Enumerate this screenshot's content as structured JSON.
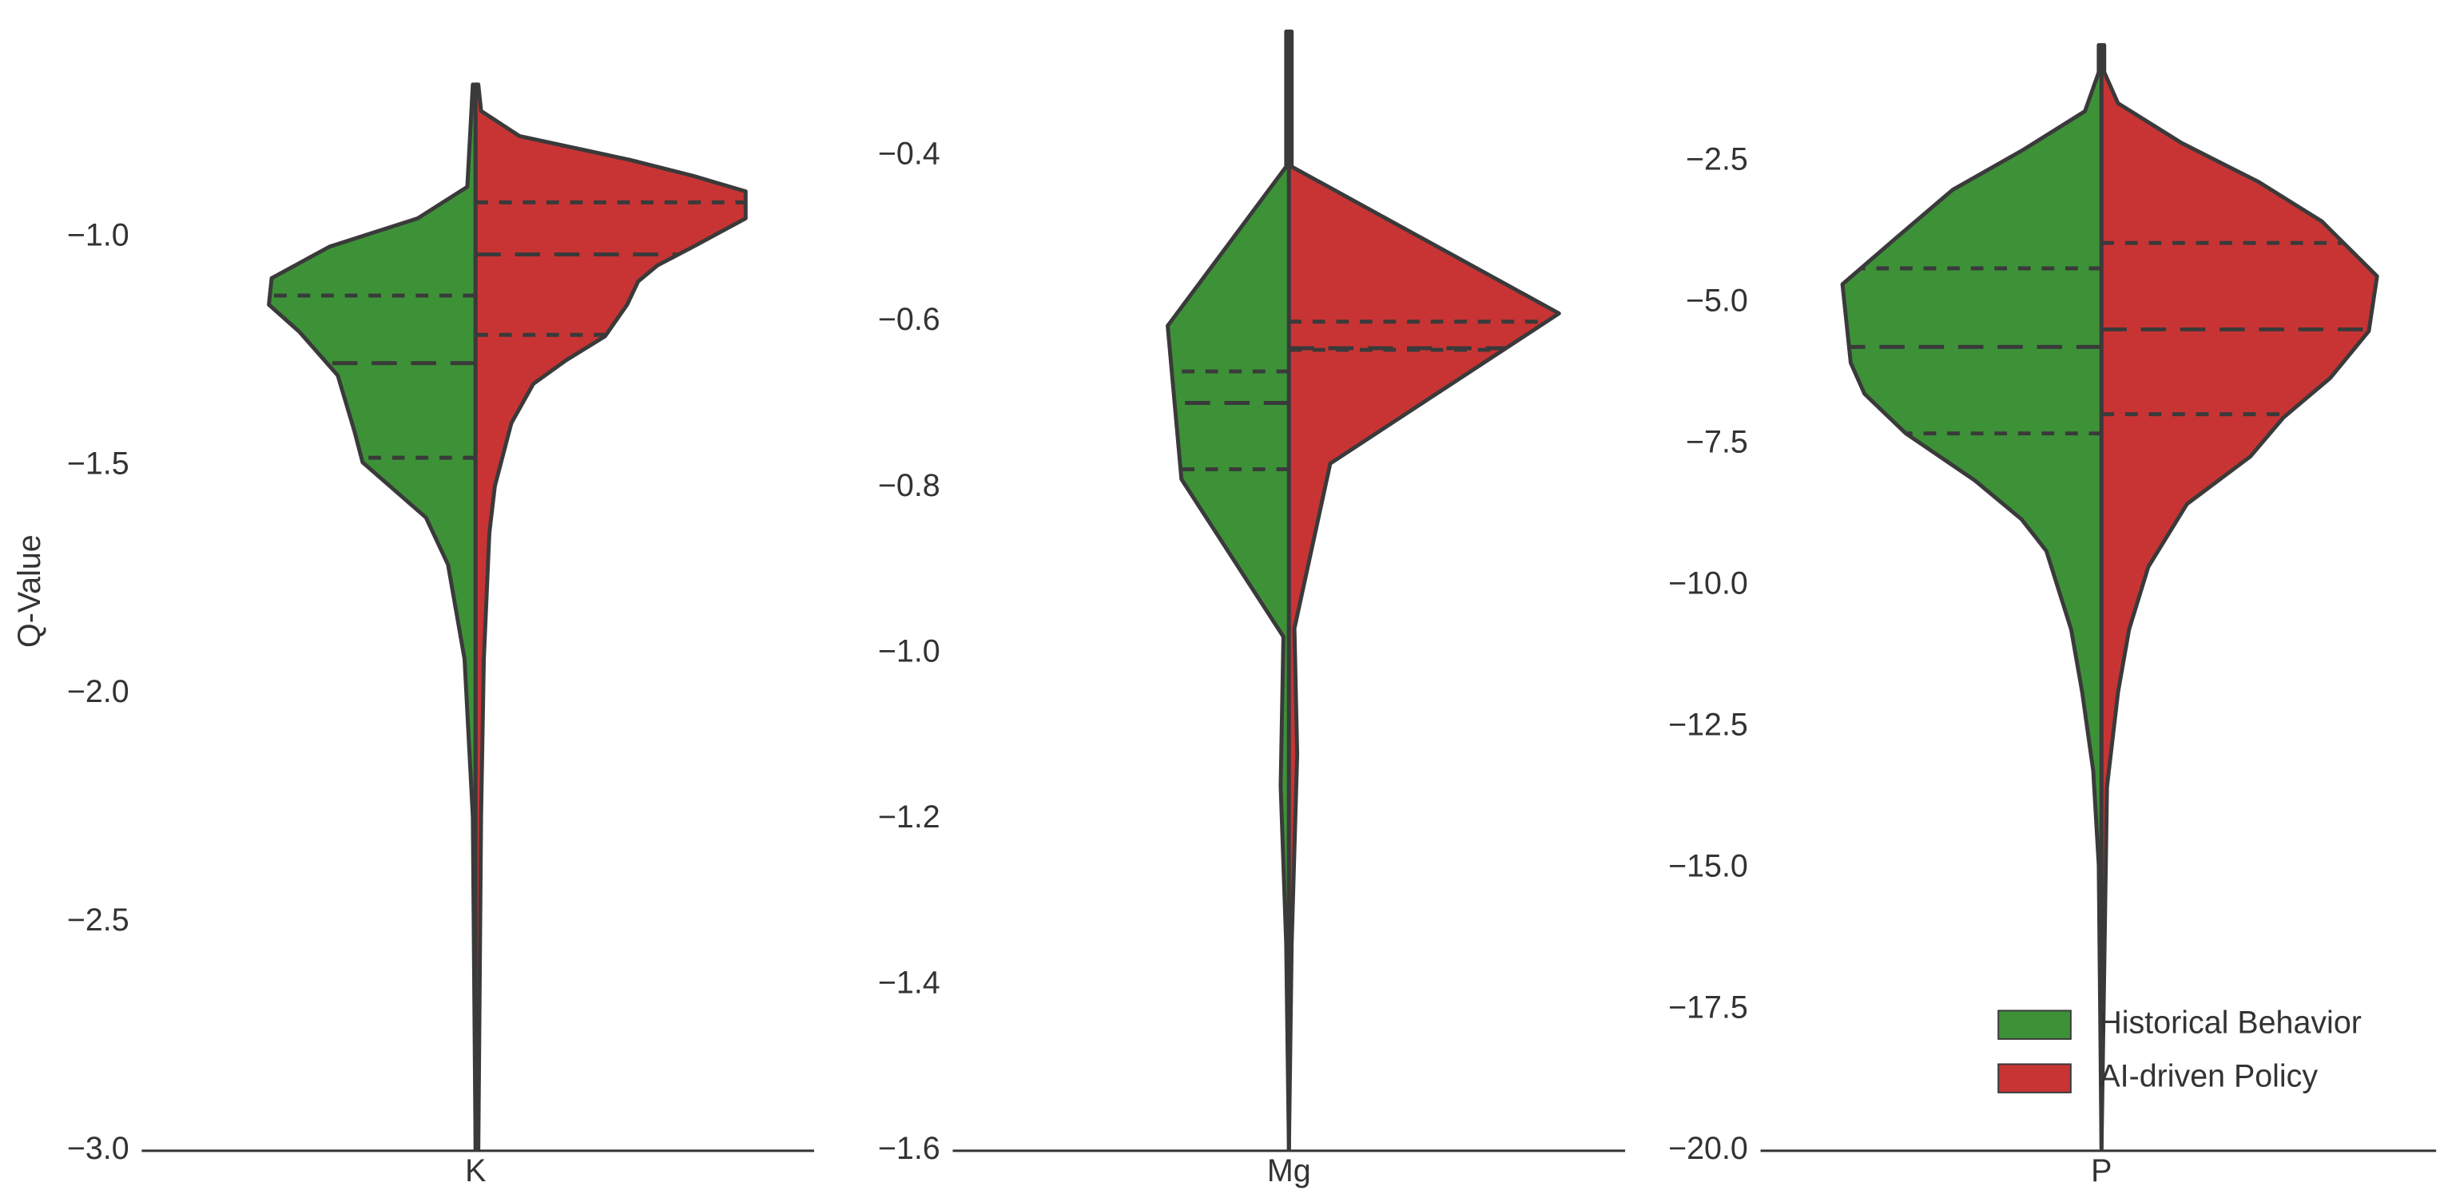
{
  "chart_data": [
    {
      "type": "violin",
      "category": "K",
      "y_label": "Q-Value",
      "ylim": [
        -3.0,
        -0.55
      ],
      "yticks": [
        {
          "value": -3.0,
          "label": "−3.0"
        },
        {
          "value": -2.5,
          "label": "−2.5"
        },
        {
          "value": -2.0,
          "label": "−2.0"
        },
        {
          "value": -1.5,
          "label": "−1.5"
        },
        {
          "value": -1.0,
          "label": "−1.0"
        }
      ],
      "series": [
        {
          "color": "#3d9238",
          "side": "left",
          "y": [
            -0.666,
            -0.89,
            -0.959,
            -1.021,
            -1.09,
            -1.148,
            -1.207,
            -1.303,
            -1.424,
            -1.493,
            -1.614,
            -1.717,
            -1.924,
            -2.269,
            -2.997
          ],
          "density": [
            0.01,
            0.03,
            0.21,
            0.53,
            0.74,
            0.75,
            0.64,
            0.5,
            0.44,
            0.41,
            0.18,
            0.1,
            0.04,
            0.01,
            0
          ],
          "quartiles": [
            -1.483,
            -1.276,
            -1.128
          ]
        },
        {
          "color": "#c83434",
          "side": "right",
          "y": [
            -0.666,
            -0.724,
            -0.779,
            -0.831,
            -0.866,
            -0.9,
            -0.959,
            -1.021,
            -1.062,
            -1.097,
            -1.148,
            -1.217,
            -1.269,
            -1.321,
            -1.407,
            -1.545,
            -1.648,
            -1.924,
            -2.269,
            -2.997
          ],
          "density": [
            0.01,
            0.02,
            0.16,
            0.56,
            0.79,
            0.98,
            0.98,
            0.79,
            0.66,
            0.59,
            0.55,
            0.47,
            0.33,
            0.21,
            0.13,
            0.07,
            0.05,
            0.03,
            0.02,
            0.01
          ],
          "quartiles": [
            -1.214,
            -1.038,
            -0.924
          ]
        }
      ]
    },
    {
      "type": "violin",
      "category": "Mg",
      "ylim": [
        -1.6,
        -0.25
      ],
      "yticks": [
        {
          "value": -1.6,
          "label": "−1.6"
        },
        {
          "value": -1.4,
          "label": "−1.4"
        },
        {
          "value": -1.2,
          "label": "−1.2"
        },
        {
          "value": -1.0,
          "label": "−1.0"
        },
        {
          "value": -0.8,
          "label": "−0.8"
        },
        {
          "value": -0.6,
          "label": "−0.6"
        },
        {
          "value": -0.4,
          "label": "−0.4"
        }
      ],
      "series": [
        {
          "color": "#3d9238",
          "side": "left",
          "y": [
            -0.25,
            -0.413,
            -0.605,
            -0.79,
            -0.98,
            -1.16,
            -1.35,
            -1.599
          ],
          "density": [
            0.01,
            0.01,
            0.44,
            0.39,
            0.02,
            0.03,
            0.01,
            0
          ],
          "quartiles": [
            -0.778,
            -0.698,
            -0.66
          ]
        },
        {
          "color": "#c83434",
          "side": "right",
          "y": [
            -0.25,
            -0.413,
            -0.59,
            -0.771,
            -0.97,
            -1.122,
            -1.35,
            -1.599
          ],
          "density": [
            0.01,
            0.01,
            0.98,
            0.15,
            0.02,
            0.03,
            0.01,
            0
          ],
          "quartiles": [
            -0.634,
            -0.632,
            -0.6
          ]
        }
      ]
    },
    {
      "type": "violin",
      "category": "P",
      "legend": "lower right",
      "ylim": [
        -20.0,
        -0.2
      ],
      "yticks": [
        {
          "value": -20.0,
          "label": "−20.0"
        },
        {
          "value": -17.5,
          "label": "−17.5"
        },
        {
          "value": -15.0,
          "label": "−15.0"
        },
        {
          "value": -12.5,
          "label": "−12.5"
        },
        {
          "value": -10.0,
          "label": "−10.0"
        },
        {
          "value": -7.5,
          "label": "−7.5"
        },
        {
          "value": -5.0,
          "label": "−5.0"
        },
        {
          "value": -2.5,
          "label": "−2.5"
        }
      ],
      "series": [
        {
          "name": "Historical Behavior",
          "color": "#3d9238",
          "side": "left",
          "y": [
            -0.44,
            -0.92,
            -1.61,
            -2.31,
            -3.0,
            -3.83,
            -4.67,
            -6.06,
            -6.61,
            -7.31,
            -8.14,
            -8.83,
            -9.39,
            -10.78,
            -11.89,
            -13.28,
            -14.94,
            -19.97
          ],
          "density": [
            0.01,
            0.01,
            0.06,
            0.29,
            0.54,
            0.74,
            0.94,
            0.91,
            0.86,
            0.71,
            0.46,
            0.29,
            0.2,
            0.11,
            0.07,
            0.03,
            0.01,
            0
          ],
          "quartiles": [
            -7.31,
            -5.78,
            -4.39
          ]
        },
        {
          "name": "AI-driven Policy",
          "color": "#c83434",
          "side": "right",
          "y": [
            -0.44,
            -0.92,
            -1.47,
            -2.17,
            -2.86,
            -3.56,
            -4.53,
            -5.5,
            -6.33,
            -7.03,
            -7.72,
            -8.56,
            -9.67,
            -10.78,
            -11.89,
            -13.56,
            -19.97
          ],
          "density": [
            0.01,
            0.01,
            0.06,
            0.29,
            0.57,
            0.8,
            1.0,
            0.97,
            0.83,
            0.66,
            0.54,
            0.31,
            0.17,
            0.1,
            0.06,
            0.02,
            0
          ],
          "quartiles": [
            -6.97,
            -5.47,
            -3.94
          ]
        }
      ]
    }
  ]
}
